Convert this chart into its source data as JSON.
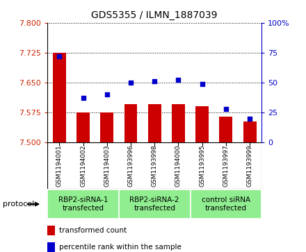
{
  "title": "GDS5355 / ILMN_1887039",
  "samples": [
    "GSM1194001",
    "GSM1194002",
    "GSM1194003",
    "GSM1193996",
    "GSM1193998",
    "GSM1194000",
    "GSM1193995",
    "GSM1193997",
    "GSM1193999"
  ],
  "transformed_counts": [
    7.725,
    7.575,
    7.575,
    7.595,
    7.595,
    7.595,
    7.59,
    7.565,
    7.552
  ],
  "percentile_ranks": [
    72,
    37,
    40,
    50,
    51,
    52,
    49,
    28,
    20
  ],
  "ylim_left": [
    7.5,
    7.8
  ],
  "ylim_right": [
    0,
    100
  ],
  "yticks_left": [
    7.5,
    7.575,
    7.65,
    7.725,
    7.8
  ],
  "yticks_right": [
    0,
    25,
    50,
    75,
    100
  ],
  "bar_color": "#cc0000",
  "dot_color": "#0000cc",
  "bar_width": 0.55,
  "groups": [
    {
      "label": "RBP2-siRNA-1\ntransfected",
      "indices": [
        0,
        1,
        2
      ],
      "color": "#90EE90"
    },
    {
      "label": "RBP2-siRNA-2\ntransfected",
      "indices": [
        3,
        4,
        5
      ],
      "color": "#90EE90"
    },
    {
      "label": "control siRNA\ntransfected",
      "indices": [
        6,
        7,
        8
      ],
      "color": "#90EE90"
    }
  ],
  "protocol_label": "protocol",
  "legend_bar_label": "transformed count",
  "legend_dot_label": "percentile rank within the sample",
  "background_color": "#ffffff",
  "tick_label_color_left": "#cc2200",
  "tick_label_color_right": "#0000cc",
  "sample_bg_color": "#d0d0d0",
  "right_ytick_labels": [
    "0",
    "25",
    "50",
    "75",
    "100%"
  ],
  "left_ytick_labels": [
    "7.5",
    "7.575",
    "7.65",
    "7.725",
    "7.8"
  ]
}
